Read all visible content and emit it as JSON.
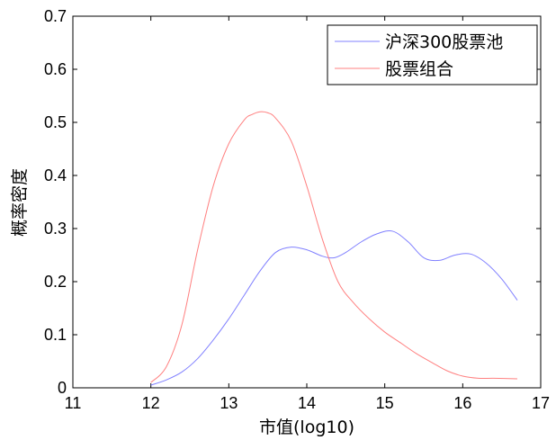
{
  "chart_data": {
    "type": "line",
    "title": "",
    "xlabel": "市值(log10)",
    "ylabel": "概率密度",
    "xlim": [
      11,
      17
    ],
    "ylim": [
      0,
      0.7
    ],
    "xticks": [
      "11",
      "12",
      "13",
      "14",
      "15",
      "16",
      "17"
    ],
    "yticks": [
      "0",
      "0.1",
      "0.2",
      "0.3",
      "0.4",
      "0.5",
      "0.6",
      "0.7"
    ],
    "grid": false,
    "legend_position": "top-right",
    "series": [
      {
        "name": "沪深300股票池",
        "color": "#8080ff",
        "x": [
          12.0,
          12.2,
          12.4,
          12.6,
          12.8,
          13.0,
          13.2,
          13.4,
          13.6,
          13.8,
          14.0,
          14.2,
          14.35,
          14.5,
          14.7,
          14.9,
          15.1,
          15.3,
          15.5,
          15.7,
          15.9,
          16.1,
          16.3,
          16.5,
          16.7
        ],
        "y": [
          0.005,
          0.015,
          0.03,
          0.055,
          0.09,
          0.13,
          0.175,
          0.22,
          0.255,
          0.265,
          0.26,
          0.248,
          0.245,
          0.255,
          0.275,
          0.29,
          0.295,
          0.275,
          0.245,
          0.24,
          0.25,
          0.252,
          0.235,
          0.205,
          0.165
        ]
      },
      {
        "name": "股票组合",
        "color": "#ff8080",
        "x": [
          12.0,
          12.2,
          12.4,
          12.6,
          12.8,
          13.0,
          13.2,
          13.3,
          13.4,
          13.5,
          13.6,
          13.8,
          14.0,
          14.2,
          14.4,
          14.6,
          14.8,
          15.0,
          15.2,
          15.4,
          15.6,
          15.8,
          16.0,
          16.2,
          16.4,
          16.7
        ],
        "y": [
          0.01,
          0.04,
          0.12,
          0.26,
          0.38,
          0.46,
          0.505,
          0.515,
          0.52,
          0.518,
          0.508,
          0.465,
          0.38,
          0.28,
          0.2,
          0.16,
          0.13,
          0.105,
          0.085,
          0.065,
          0.048,
          0.032,
          0.022,
          0.018,
          0.018,
          0.017
        ]
      }
    ]
  }
}
